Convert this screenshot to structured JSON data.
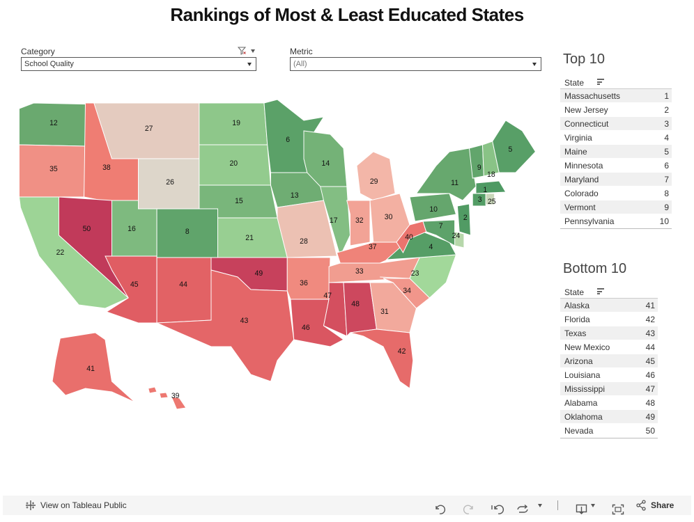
{
  "title": "Rankings of Most & Least Educated States",
  "filters": {
    "category": {
      "label": "Category",
      "value": "School Quality"
    },
    "metric": {
      "label": "Metric",
      "value": "(All)"
    }
  },
  "top10": {
    "title": "Top 10",
    "column": "State",
    "rows": [
      {
        "state": "Massachusetts",
        "rank": "1"
      },
      {
        "state": "New Jersey",
        "rank": "2"
      },
      {
        "state": "Connecticut",
        "rank": "3"
      },
      {
        "state": "Virginia",
        "rank": "4"
      },
      {
        "state": "Maine",
        "rank": "5"
      },
      {
        "state": "Minnesota",
        "rank": "6"
      },
      {
        "state": "Maryland",
        "rank": "7"
      },
      {
        "state": "Colorado",
        "rank": "8"
      },
      {
        "state": "Vermont",
        "rank": "9"
      },
      {
        "state": "Pennsylvania",
        "rank": "10"
      }
    ]
  },
  "bottom10": {
    "title": "Bottom 10",
    "column": "State",
    "rows": [
      {
        "state": "Alaska",
        "rank": "41"
      },
      {
        "state": "Florida",
        "rank": "42"
      },
      {
        "state": "Texas",
        "rank": "43"
      },
      {
        "state": "New Mexico",
        "rank": "44"
      },
      {
        "state": "Arizona",
        "rank": "45"
      },
      {
        "state": "Louisiana",
        "rank": "46"
      },
      {
        "state": "Mississippi",
        "rank": "47"
      },
      {
        "state": "Alabama",
        "rank": "48"
      },
      {
        "state": "Oklahoma",
        "rank": "49"
      },
      {
        "state": "Nevada",
        "rank": "50"
      }
    ]
  },
  "map": {
    "colors": {
      "best": "#4e9a63",
      "mid": "#ddd6ca",
      "worst": "#c13a5a"
    },
    "states": {
      "WA": 12,
      "OR": 35,
      "CA": 22,
      "ID": 38,
      "NV": 50,
      "MT": 27,
      "WY": 26,
      "UT": 16,
      "AZ": 45,
      "CO": 8,
      "NM": 44,
      "ND": 19,
      "SD": 20,
      "NE": 15,
      "KS": 21,
      "OK": 49,
      "TX": 43,
      "MN": 6,
      "IA": 13,
      "MO": 28,
      "AR": 36,
      "LA": 46,
      "WI": 14,
      "IL": 17,
      "MI": 29,
      "IN": 32,
      "OH": 30,
      "KY": 37,
      "TN": 33,
      "MS": 47,
      "AL": 48,
      "GA": 31,
      "FL": 42,
      "SC": 34,
      "NC": 23,
      "VA": 4,
      "WV": 40,
      "PA": 10,
      "NY": 11,
      "VT": 9,
      "NH": 18,
      "ME": 5,
      "MA": 1,
      "CT": 3,
      "RI": 25,
      "NJ": 2,
      "DE": 24,
      "MD": 7,
      "AK": 41,
      "HI": 39
    }
  },
  "toolbar": {
    "view_label": "View on Tableau Public",
    "share_label": "Share"
  }
}
